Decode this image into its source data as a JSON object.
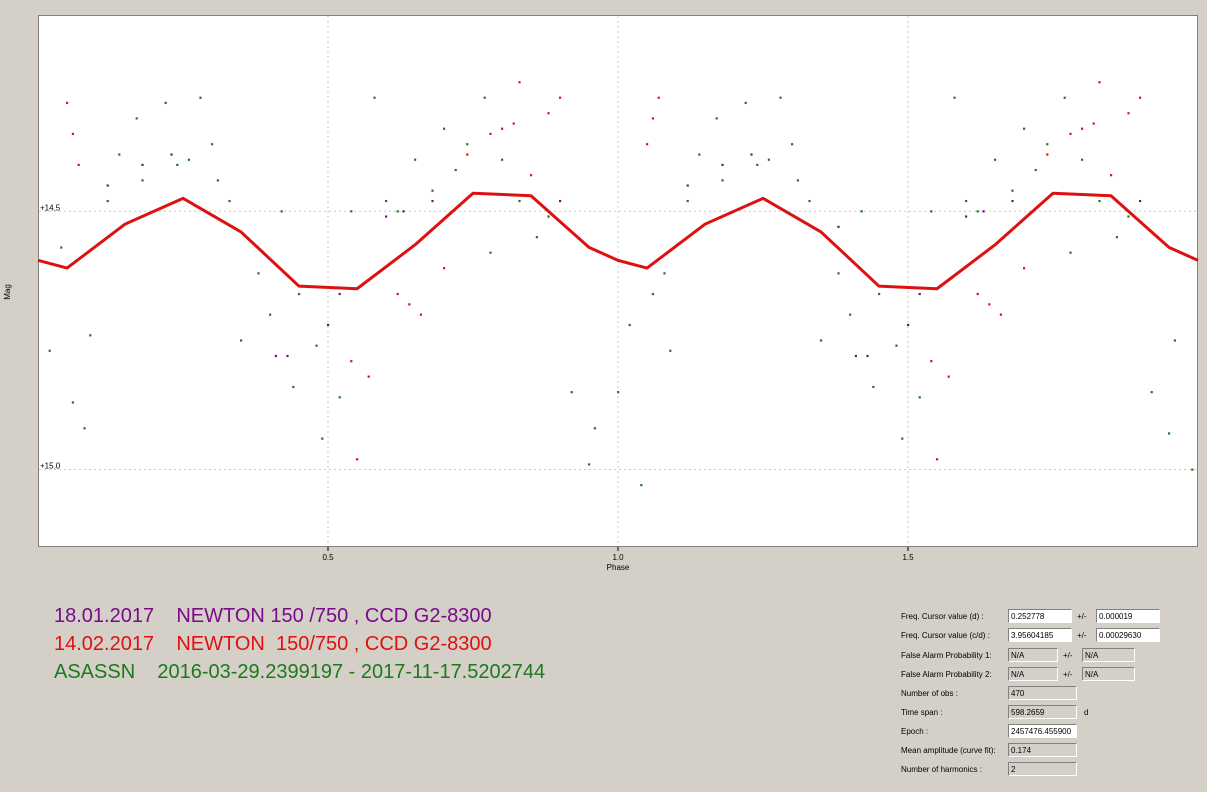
{
  "chart_data": {
    "type": "scatter",
    "title": "",
    "xlabel": "Phase",
    "ylabel": "Mag",
    "xlim": [
      0,
      2
    ],
    "ylim": [
      14.12,
      15.15
    ],
    "y_inverted": true,
    "x_ticks": [
      {
        "value": 0.5,
        "label": "0.5"
      },
      {
        "value": 1.0,
        "label": "1.0"
      },
      {
        "value": 1.5,
        "label": "1.5"
      }
    ],
    "y_ticks": [
      {
        "value": 14.5,
        "label": "+14.5"
      },
      {
        "value": 15.0,
        "label": "+15.0"
      }
    ],
    "grid": true,
    "fit_curve": {
      "name": "",
      "color": "#dd1111",
      "x": [
        0.0,
        0.05,
        0.15,
        0.25,
        0.35,
        0.45,
        0.55,
        0.65,
        0.75,
        0.85,
        0.95,
        1.0,
        1.05,
        1.15,
        1.25,
        1.35,
        1.45,
        1.55,
        1.65,
        1.75,
        1.85,
        1.95,
        2.0
      ],
      "y": [
        14.595,
        14.61,
        14.525,
        14.475,
        14.54,
        14.645,
        14.65,
        14.565,
        14.465,
        14.47,
        14.57,
        14.595,
        14.61,
        14.525,
        14.475,
        14.54,
        14.645,
        14.65,
        14.565,
        14.465,
        14.47,
        14.57,
        14.595
      ]
    },
    "series": [
      {
        "label": "18.01.2017",
        "color": "#7b0a8a",
        "x": [
          0.12,
          0.18,
          0.23,
          0.41,
          0.43,
          0.5,
          0.52,
          0.6,
          0.63,
          0.68,
          0.9,
          1.12,
          1.18,
          1.23,
          1.38,
          1.41,
          1.43,
          1.5,
          1.52,
          1.6,
          1.63,
          1.68,
          1.9
        ],
        "y": [
          14.45,
          14.41,
          14.39,
          14.78,
          14.78,
          14.72,
          14.66,
          14.51,
          14.5,
          14.48,
          14.48,
          14.45,
          14.41,
          14.39,
          14.53,
          14.78,
          14.78,
          14.72,
          14.66,
          14.51,
          14.5,
          14.48,
          14.48
        ]
      },
      {
        "label": "14.02.2017",
        "color": "#e01010",
        "x": [
          0.05,
          0.06,
          0.07,
          0.55,
          0.54,
          0.57,
          0.62,
          0.64,
          0.66,
          0.7,
          0.74,
          0.78,
          0.8,
          0.82,
          0.83,
          0.85,
          0.88,
          0.9,
          1.05,
          1.06,
          1.07,
          1.55,
          1.54,
          1.57,
          1.62,
          1.64,
          1.66,
          1.7,
          1.74,
          1.78,
          1.8,
          1.82,
          1.83,
          1.85,
          1.88,
          1.9
        ],
        "y": [
          14.29,
          14.35,
          14.41,
          14.98,
          14.79,
          14.82,
          14.66,
          14.68,
          14.7,
          14.61,
          14.39,
          14.35,
          14.34,
          14.33,
          14.25,
          14.43,
          14.31,
          14.28,
          14.37,
          14.32,
          14.28,
          14.98,
          14.79,
          14.82,
          14.66,
          14.68,
          14.7,
          14.61,
          14.39,
          14.35,
          14.34,
          14.33,
          14.25,
          14.43,
          14.31,
          14.28
        ]
      },
      {
        "label": "ASASSN",
        "color": "#1b7a1b",
        "x": [
          0.02,
          0.04,
          0.06,
          0.08,
          0.09,
          0.12,
          0.14,
          0.17,
          0.18,
          0.2,
          0.22,
          0.24,
          0.26,
          0.28,
          0.3,
          0.31,
          0.33,
          0.35,
          0.38,
          0.4,
          0.42,
          0.44,
          0.45,
          0.48,
          0.49,
          0.52,
          0.54,
          0.58,
          0.6,
          0.62,
          0.65,
          0.68,
          0.7,
          0.72,
          0.74,
          0.77,
          0.78,
          0.8,
          0.83,
          0.86,
          0.88,
          0.92,
          0.95,
          0.96,
          1.0,
          1.02,
          1.04,
          1.06,
          1.08,
          1.09,
          1.12,
          1.14,
          1.17,
          1.18,
          1.2,
          1.22,
          1.24,
          1.26,
          1.28,
          1.3,
          1.31,
          1.33,
          1.35,
          1.38,
          1.4,
          1.42,
          1.44,
          1.45,
          1.48,
          1.49,
          1.52,
          1.54,
          1.58,
          1.6,
          1.62,
          1.65,
          1.68,
          1.7,
          1.72,
          1.74,
          1.77,
          1.78,
          1.8,
          1.83,
          1.86,
          1.88,
          1.92,
          1.95,
          1.96,
          1.99
        ],
        "y": [
          14.77,
          14.57,
          14.87,
          14.92,
          14.74,
          14.48,
          14.39,
          14.32,
          14.44,
          14.5,
          14.29,
          14.41,
          14.4,
          14.28,
          14.37,
          14.44,
          14.48,
          14.75,
          14.62,
          14.7,
          14.5,
          14.84,
          14.66,
          14.76,
          14.94,
          14.86,
          14.5,
          14.28,
          14.48,
          14.5,
          14.4,
          14.46,
          14.34,
          14.42,
          14.37,
          14.28,
          14.58,
          14.4,
          14.48,
          14.55,
          14.51,
          14.85,
          14.99,
          14.92,
          14.85,
          14.72,
          15.03,
          14.66,
          14.62,
          14.77,
          14.48,
          14.39,
          14.32,
          14.44,
          14.5,
          14.29,
          14.41,
          14.4,
          14.28,
          14.37,
          14.44,
          14.48,
          14.75,
          14.62,
          14.7,
          14.5,
          14.84,
          14.66,
          14.76,
          14.94,
          14.86,
          14.5,
          14.28,
          14.48,
          14.5,
          14.4,
          14.46,
          14.34,
          14.42,
          14.37,
          14.28,
          14.58,
          14.4,
          14.48,
          14.55,
          14.51,
          14.85,
          14.93,
          14.75,
          15.0
        ]
      }
    ]
  },
  "legend": [
    {
      "text": "18.01.2017    NEWTON 150 /750 , CCD G2-8300",
      "color": "#7b0a8a"
    },
    {
      "text": "14.02.2017    NEWTON  150/750 , CCD G2-8300",
      "color": "#e01010"
    },
    {
      "text": "ASASSN    2016-03-29.2399197 - 2017-11-17.5202744",
      "color": "#1b7a1b"
    }
  ],
  "info_panel": {
    "freq_cursor_d": {
      "label": "Freq. Cursor value (d) :",
      "value": "0.252778",
      "pm": "+/-",
      "err": "0.000019"
    },
    "freq_cursor_cd": {
      "label": "Freq. Cursor value (c/d) :",
      "value": "3.95604185",
      "pm": "+/-",
      "err": "0.00029630"
    },
    "false_alarm_1": {
      "label": "False Alarm Probability 1:",
      "value": "N/A",
      "pm": "+/-",
      "err": "N/A"
    },
    "false_alarm_2": {
      "label": "False Alarm Probability 2:",
      "value": "N/A",
      "pm": "+/-",
      "err": "N/A"
    },
    "num_obs": {
      "label": "Number of obs :",
      "value": "470"
    },
    "time_span": {
      "label": "Time span :",
      "value": "598.2659",
      "unit": "d"
    },
    "epoch": {
      "label": "Epoch :",
      "value": "2457476.455900"
    },
    "mean_amplitude": {
      "label": "Mean amplitude (curve fit):",
      "value": "0.174"
    },
    "num_harmonics": {
      "label": "Number of harmonics :",
      "value": "2"
    }
  }
}
